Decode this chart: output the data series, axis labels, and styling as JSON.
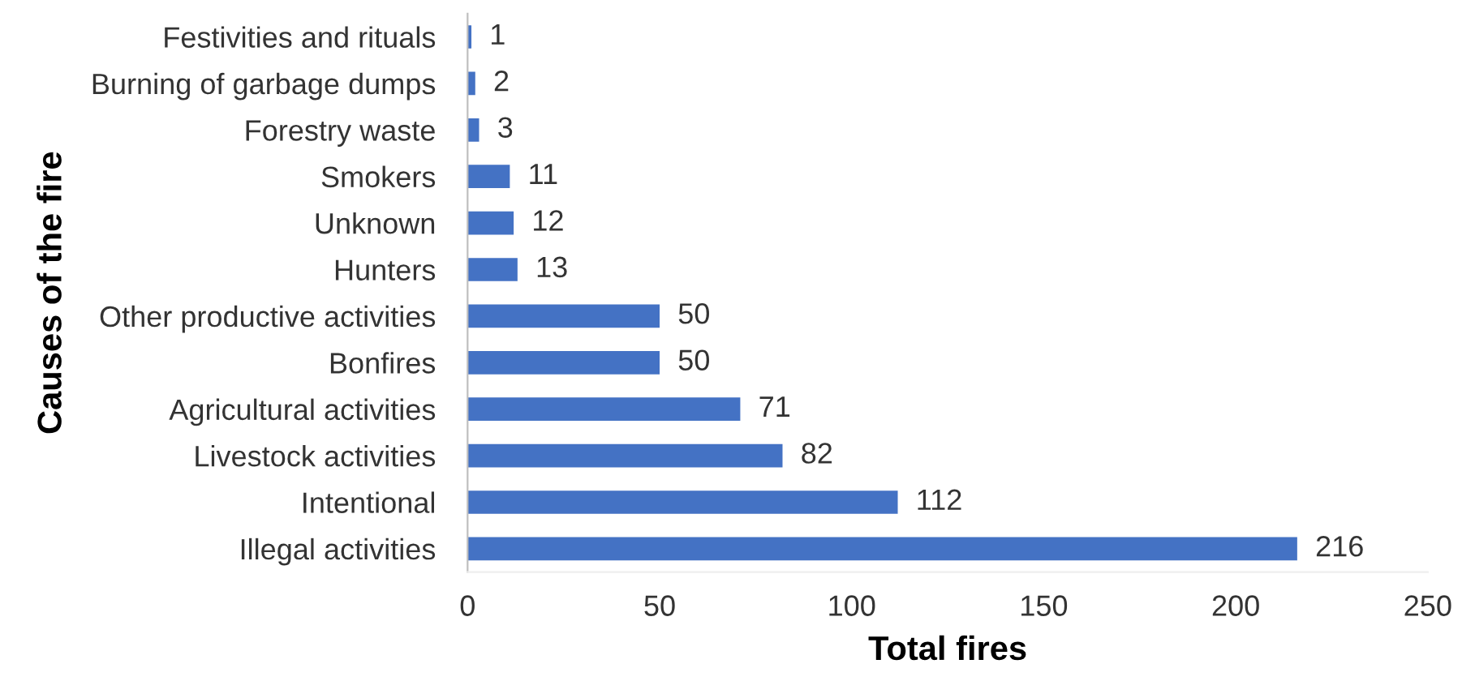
{
  "chart_data": {
    "type": "bar",
    "orientation": "horizontal",
    "xlabel": "Total fires",
    "ylabel": "Causes of the fire",
    "categories": [
      "Festivities and rituals",
      "Burning of garbage dumps",
      "Forestry waste",
      "Smokers",
      "Unknown",
      "Hunters",
      "Other productive activities",
      "Bonfires",
      "Agricultural activities",
      "Livestock activities",
      "Intentional",
      "Illegal activities"
    ],
    "values": [
      1,
      2,
      3,
      11,
      12,
      13,
      50,
      50,
      71,
      82,
      112,
      216
    ],
    "color": "#4472c4",
    "xlim": [
      0,
      250
    ],
    "xticks": [
      0,
      50,
      100,
      150,
      200,
      250
    ],
    "data_labels": true,
    "grid": false,
    "legend": false
  }
}
